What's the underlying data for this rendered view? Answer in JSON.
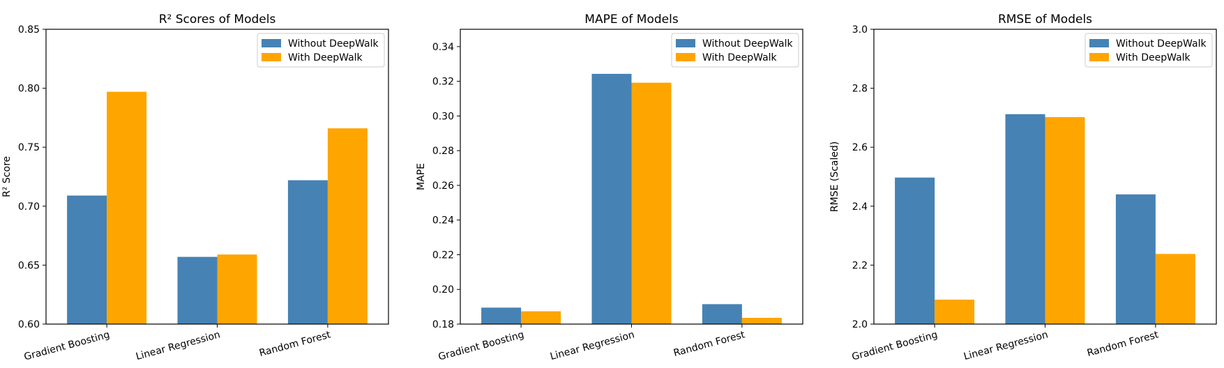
{
  "chart_data": [
    {
      "type": "bar",
      "title": "R² Scores of Models",
      "xlabel": "",
      "ylabel": "R² Score",
      "categories": [
        "Gradient Boosting",
        "Linear Regression",
        "Random Forest"
      ],
      "series": [
        {
          "name": "Without DeepWalk",
          "values": [
            0.709,
            0.657,
            0.722
          ]
        },
        {
          "name": "With DeepWalk",
          "values": [
            0.797,
            0.659,
            0.766
          ]
        }
      ],
      "ylim": [
        0.6,
        0.85
      ],
      "yticks": [
        0.6,
        0.65,
        0.7,
        0.75,
        0.8,
        0.85
      ],
      "ytick_decimals": 2,
      "legend": "top-right",
      "grid": false
    },
    {
      "type": "bar",
      "title": "MAPE of Models",
      "xlabel": "",
      "ylabel": "MAPE",
      "categories": [
        "Gradient Boosting",
        "Linear Regression",
        "Random Forest"
      ],
      "series": [
        {
          "name": "Without DeepWalk",
          "values": [
            0.1895,
            0.3243,
            0.1915
          ]
        },
        {
          "name": "With DeepWalk",
          "values": [
            0.1874,
            0.3192,
            0.1836
          ]
        }
      ],
      "ylim": [
        0.18,
        0.35
      ],
      "yticks": [
        0.18,
        0.2,
        0.22,
        0.24,
        0.26,
        0.28,
        0.3,
        0.32,
        0.34
      ],
      "ytick_decimals": 2,
      "legend": "top-right",
      "grid": false
    },
    {
      "type": "bar",
      "title": "RMSE of Models",
      "xlabel": "",
      "ylabel": "RMSE (Scaled)",
      "categories": [
        "Gradient Boosting",
        "Linear Regression",
        "Random Forest"
      ],
      "series": [
        {
          "name": "Without DeepWalk",
          "values": [
            2.497,
            2.712,
            2.44
          ]
        },
        {
          "name": "With DeepWalk",
          "values": [
            2.083,
            2.702,
            2.238
          ]
        }
      ],
      "ylim": [
        2.0,
        3.0
      ],
      "yticks": [
        2.0,
        2.2,
        2.4,
        2.6,
        2.8,
        3.0
      ],
      "ytick_decimals": 1,
      "legend": "top-right",
      "grid": false
    }
  ],
  "colors": {
    "series": [
      "#4682b4",
      "#ffa500"
    ]
  }
}
